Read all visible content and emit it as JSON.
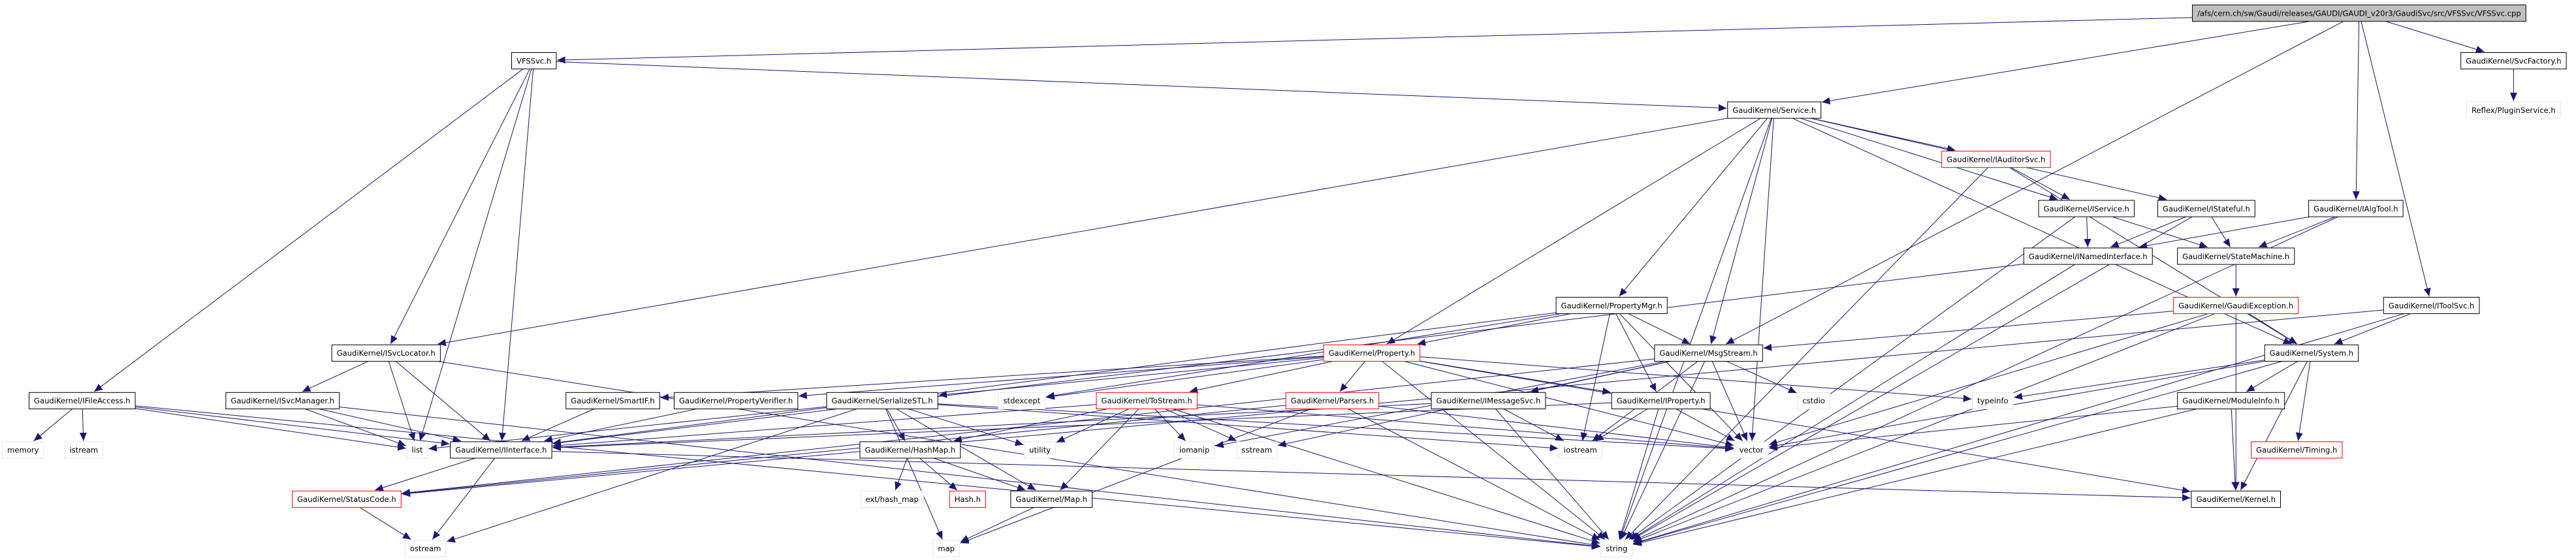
{
  "nodes": [
    {
      "label": "/afs/cern.ch/sw/Gaudi/releases/GAUDI/GAUDI_v20r3/GaudiSvc/src/VFSSvc/VFSSvc.cpp"
    },
    {
      "label": "VFSSvc.h"
    },
    {
      "label": "GaudiKernel/SvcFactory.h"
    },
    {
      "label": "Reflex/PluginService.h"
    },
    {
      "label": "GaudiKernel/Service.h"
    },
    {
      "label": "GaudiKernel/IAuditorSvc.h"
    },
    {
      "label": "GaudiKernel/IService.h"
    },
    {
      "label": "GaudiKernel/IStateful.h"
    },
    {
      "label": "GaudiKernel/IAlgTool.h"
    },
    {
      "label": "GaudiKernel/INamedInterface.h"
    },
    {
      "label": "GaudiKernel/StateMachine.h"
    },
    {
      "label": "GaudiKernel/PropertyMgr.h"
    },
    {
      "label": "GaudiKernel/GaudiException.h"
    },
    {
      "label": "GaudiKernel/IToolSvc.h"
    },
    {
      "label": "GaudiKernel/ISvcLocator.h"
    },
    {
      "label": "GaudiKernel/Property.h"
    },
    {
      "label": "GaudiKernel/MsgStream.h"
    },
    {
      "label": "GaudiKernel/System.h"
    },
    {
      "label": "GaudiKernel/IFileAccess.h"
    },
    {
      "label": "GaudiKernel/ISvcManager.h"
    },
    {
      "label": "GaudiKernel/SmartIF.h"
    },
    {
      "label": "GaudiKernel/PropertyVerifier.h"
    },
    {
      "label": "GaudiKernel/SerializeSTL.h"
    },
    {
      "label": "GaudiKernel/ToStream.h"
    },
    {
      "label": "GaudiKernel/Parsers.h"
    },
    {
      "label": "GaudiKernel/IMessageSvc.h"
    },
    {
      "label": "GaudiKernel/IProperty.h"
    },
    {
      "label": "GaudiKernel/ModuleInfo.h"
    },
    {
      "label": "stdexcept"
    },
    {
      "label": "cstdio"
    },
    {
      "label": "typeinfo"
    },
    {
      "label": "memory"
    },
    {
      "label": "istream"
    },
    {
      "label": "list"
    },
    {
      "label": "GaudiKernel/IInterface.h"
    },
    {
      "label": "GaudiKernel/HashMap.h"
    },
    {
      "label": "utility"
    },
    {
      "label": "iomanip"
    },
    {
      "label": "sstream"
    },
    {
      "label": "iostream"
    },
    {
      "label": "vector"
    },
    {
      "label": "GaudiKernel/Timing.h"
    },
    {
      "label": "GaudiKernel/StatusCode.h"
    },
    {
      "label": "ext/hash_map"
    },
    {
      "label": "Hash.h"
    },
    {
      "label": "GaudiKernel/Map.h"
    },
    {
      "label": "GaudiKernel/Kernel.h"
    },
    {
      "label": "ostream"
    },
    {
      "label": "map"
    },
    {
      "label": "string"
    }
  ]
}
